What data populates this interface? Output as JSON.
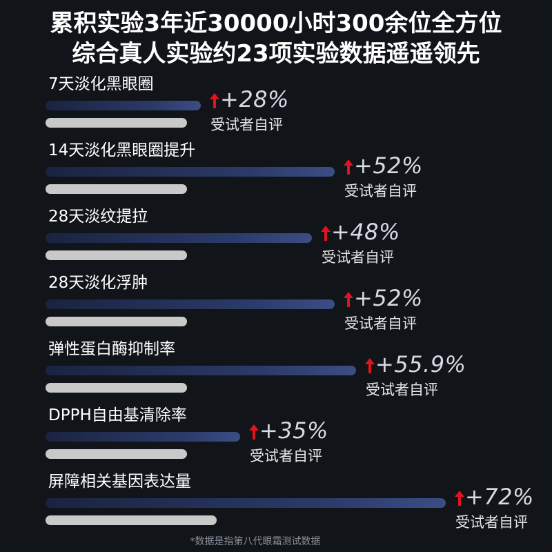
{
  "headline": {
    "line1": "累积实验3年近30000小时300余位全方位",
    "line2": "综合真人实验约23项实验数据遥遥领先"
  },
  "chart_data": {
    "type": "bar",
    "orientation": "horizontal",
    "value_unit": "%",
    "bar_color": "#2b3a68",
    "baseline_color": "#c9c9c9",
    "arrow_color": "#e0141e",
    "items": [
      {
        "label": "7天淡化黑眼圈",
        "value": 28,
        "display": "+28%",
        "note": "受试者自评"
      },
      {
        "label": "14天淡化黑眼圈提升",
        "value": 52,
        "display": "+52%",
        "note": "受试者自评"
      },
      {
        "label": "28天淡纹提拉",
        "value": 48,
        "display": "+48%",
        "note": "受试者自评"
      },
      {
        "label": "28天淡化浮肿",
        "value": 52,
        "display": "+52%",
        "note": "受试者自评"
      },
      {
        "label": "弹性蛋白酶抑制率",
        "value": 55.9,
        "display": "+55.9%",
        "note": "受试者自评"
      },
      {
        "label": "DPPH自由基清除率",
        "value": 35,
        "display": "+35%",
        "note": "受试者自评"
      },
      {
        "label": "屏障相关基因表达量",
        "value": 72,
        "display": "+72%",
        "note": "受试者自评"
      }
    ]
  },
  "footnote": "*数据是指第八代眼霜测试数据"
}
